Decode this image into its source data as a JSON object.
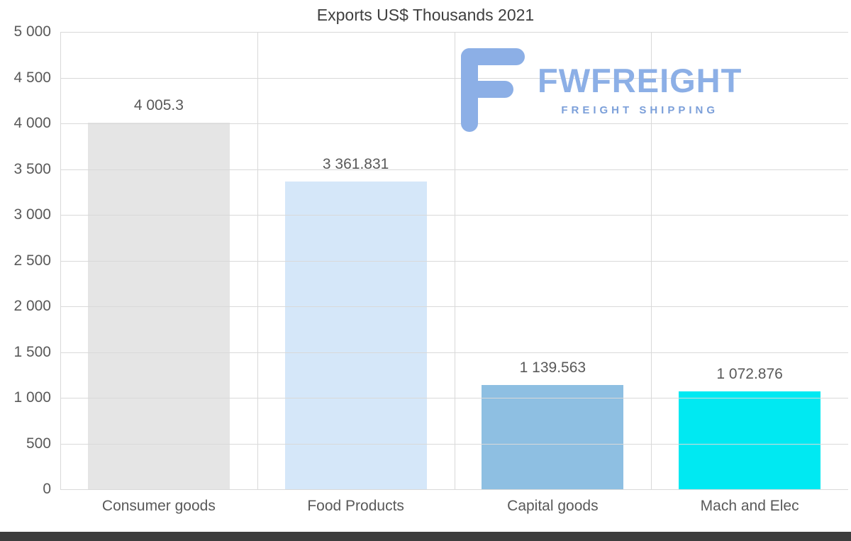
{
  "logo": {
    "brand": "FWFREIGHT",
    "tagline": "FREIGHT SHIPPING",
    "brand_color": "#8cafe6",
    "tagline_color": "#7b9fd9",
    "icon": "freight-f-icon"
  },
  "chart_data": {
    "type": "bar",
    "title": "Exports US$ Thousands 2021",
    "categories": [
      "Consumer goods",
      "Food Products",
      "Capital goods",
      "Mach and Elec"
    ],
    "values": [
      4005.3,
      3361.831,
      1139.563,
      1072.876
    ],
    "value_labels": [
      "4 005.3",
      "3 361.831",
      "1 139.563",
      "1 072.876"
    ],
    "bar_colors": [
      "#e5e5e5",
      "#d5e7f9",
      "#8ebfe2",
      "#00e9f2"
    ],
    "xlabel": "",
    "ylabel": "",
    "ylim": [
      0,
      5000
    ],
    "ytick_interval": 500,
    "ytick_labels": [
      "5 000",
      "4 500",
      "4 000",
      "3 500",
      "3 000",
      "2 500",
      "2 000",
      "1 500",
      "1 000",
      "500",
      "0"
    ],
    "grid": true,
    "legend": false
  }
}
